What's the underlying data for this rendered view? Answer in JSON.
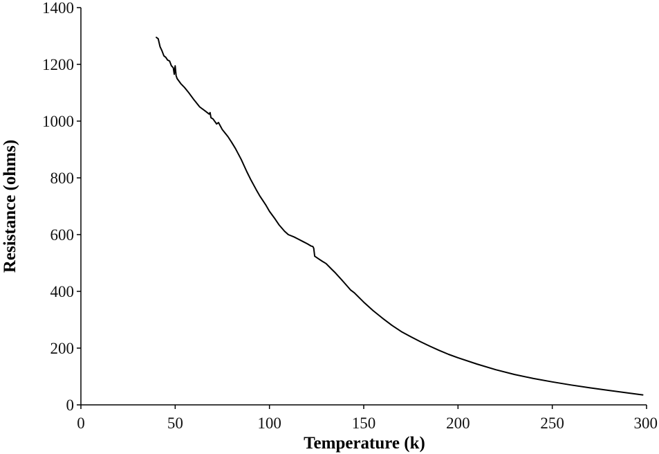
{
  "chart_data": {
    "type": "line",
    "title": "",
    "xlabel": "Temperature (k)",
    "ylabel": "Resistance (ohms)",
    "xlim": [
      0,
      300
    ],
    "ylim": [
      0,
      1400
    ],
    "xticks": [
      0,
      50,
      100,
      150,
      200,
      250,
      300
    ],
    "yticks": [
      0,
      200,
      400,
      600,
      800,
      1000,
      1200,
      1400
    ],
    "x_tick_labels": [
      "0",
      "50",
      "100",
      "150",
      "200",
      "250",
      "300"
    ],
    "y_tick_labels": [
      "0",
      "200",
      "400",
      "600",
      "800",
      "1000",
      "1200",
      "1400"
    ],
    "grid": false,
    "legend": "none",
    "line_color": "#000000",
    "series": [
      {
        "x": [
          40,
          41,
          42,
          43,
          44,
          45,
          46,
          47,
          48,
          49,
          49.5,
          50,
          50.5,
          51,
          53,
          55,
          57,
          60,
          63,
          66,
          68,
          68.5,
          69,
          70,
          72,
          73,
          75,
          78,
          80,
          82,
          85,
          88,
          90,
          93,
          95,
          98,
          100,
          103,
          105,
          108,
          110,
          113,
          115,
          118,
          120,
          122,
          123,
          123.5,
          124,
          126,
          128,
          130,
          133,
          135,
          138,
          140,
          143,
          145,
          150,
          155,
          160,
          165,
          170,
          175,
          180,
          185,
          190,
          195,
          200,
          210,
          220,
          230,
          240,
          250,
          260,
          270,
          280,
          290,
          298
        ],
        "y": [
          1295,
          1290,
          1262,
          1248,
          1230,
          1225,
          1215,
          1212,
          1195,
          1188,
          1165,
          1195,
          1160,
          1150,
          1132,
          1118,
          1102,
          1075,
          1050,
          1035,
          1025,
          1030,
          1012,
          1008,
          990,
          995,
          970,
          945,
          925,
          903,
          865,
          822,
          795,
          758,
          735,
          705,
          682,
          655,
          635,
          612,
          600,
          592,
          585,
          575,
          568,
          560,
          558,
          552,
          524,
          515,
          506,
          498,
          478,
          465,
          443,
          428,
          405,
          395,
          362,
          332,
          305,
          280,
          258,
          240,
          223,
          207,
          192,
          178,
          166,
          144,
          124,
          107,
          93,
          81,
          70,
          60,
          51,
          42,
          35
        ]
      }
    ]
  }
}
